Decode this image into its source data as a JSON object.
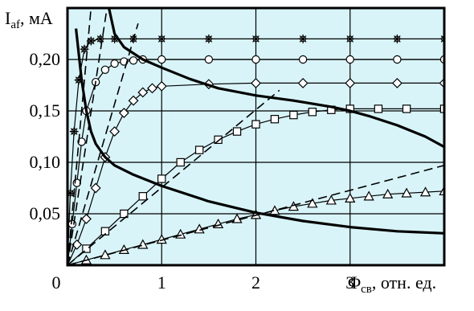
{
  "chart_data": {
    "type": "line",
    "title": "",
    "xlabel": {
      "main": "Φ",
      "sub": "св",
      "suffix": ", отн. ед."
    },
    "ylabel": {
      "main": "I",
      "sub": "af",
      "suffix": ", мА"
    },
    "xlim": [
      0,
      4
    ],
    "ylim": [
      0,
      0.25
    ],
    "x_ticks": [
      {
        "value": 1,
        "label": "1"
      },
      {
        "value": 2,
        "label": "2"
      },
      {
        "value": 3,
        "label": "3"
      }
    ],
    "y_ticks": [
      {
        "value": 0.05,
        "label": "0,05"
      },
      {
        "value": 0.1,
        "label": "0,10"
      },
      {
        "value": 0.15,
        "label": "0,15"
      },
      {
        "value": 0.2,
        "label": "0,20"
      }
    ],
    "origin_label": "0",
    "grid": true,
    "plot_background": "#d8f4f8",
    "colors": {
      "ink": "#000000"
    },
    "series": [
      {
        "marker": "asterisk",
        "style": "solid",
        "x": [
          0,
          0.03,
          0.07,
          0.12,
          0.18,
          0.25,
          0.35,
          0.5,
          0.7,
          1.0,
          1.5,
          2.0,
          2.5,
          3.0,
          3.5,
          4.0
        ],
        "y": [
          0,
          0.07,
          0.13,
          0.18,
          0.21,
          0.218,
          0.22,
          0.22,
          0.22,
          0.22,
          0.22,
          0.22,
          0.22,
          0.22,
          0.22,
          0.22
        ]
      },
      {
        "marker": "circle",
        "style": "solid",
        "x": [
          0,
          0.05,
          0.1,
          0.15,
          0.2,
          0.3,
          0.4,
          0.5,
          0.6,
          0.7,
          0.8,
          1.0,
          1.5,
          2.0,
          2.5,
          3.0,
          3.5,
          4.0
        ],
        "y": [
          0,
          0.04,
          0.08,
          0.12,
          0.15,
          0.178,
          0.19,
          0.196,
          0.198,
          0.199,
          0.2,
          0.2,
          0.2,
          0.2,
          0.2,
          0.2,
          0.2,
          0.2
        ]
      },
      {
        "marker": "diamond",
        "style": "solid",
        "x": [
          0,
          0.1,
          0.2,
          0.3,
          0.4,
          0.5,
          0.6,
          0.7,
          0.8,
          0.9,
          1.0,
          1.5,
          2.0,
          2.5,
          3.0,
          3.5,
          4.0
        ],
        "y": [
          0,
          0.02,
          0.045,
          0.075,
          0.105,
          0.13,
          0.148,
          0.16,
          0.168,
          0.172,
          0.174,
          0.176,
          0.177,
          0.177,
          0.177,
          0.177,
          0.177
        ]
      },
      {
        "marker": "square",
        "style": "solid",
        "x": [
          0,
          0.2,
          0.4,
          0.6,
          0.8,
          1.0,
          1.2,
          1.4,
          1.6,
          1.8,
          2.0,
          2.2,
          2.4,
          2.6,
          2.8,
          3.0,
          3.3,
          3.6,
          4.0
        ],
        "y": [
          0,
          0.016,
          0.033,
          0.05,
          0.067,
          0.084,
          0.1,
          0.112,
          0.122,
          0.13,
          0.137,
          0.142,
          0.146,
          0.149,
          0.151,
          0.152,
          0.152,
          0.152,
          0.152
        ]
      },
      {
        "marker": "triangle",
        "style": "solid",
        "x": [
          0,
          0.2,
          0.4,
          0.6,
          0.8,
          1.0,
          1.2,
          1.4,
          1.6,
          1.8,
          2.0,
          2.2,
          2.4,
          2.6,
          2.8,
          3.0,
          3.2,
          3.4,
          3.6,
          3.8,
          4.0
        ],
        "y": [
          0,
          0.005,
          0.01,
          0.015,
          0.02,
          0.025,
          0.03,
          0.035,
          0.04,
          0.045,
          0.049,
          0.053,
          0.057,
          0.06,
          0.063,
          0.065,
          0.067,
          0.069,
          0.07,
          0.071,
          0.072
        ]
      },
      {
        "marker": "none",
        "style": "dashed",
        "x": [
          0,
          0.25
        ],
        "y": [
          0,
          0.25
        ]
      },
      {
        "marker": "none",
        "style": "dashed",
        "x": [
          0,
          0.42
        ],
        "y": [
          0,
          0.25
        ]
      },
      {
        "marker": "none",
        "style": "dashed",
        "x": [
          0,
          0.75
        ],
        "y": [
          0,
          0.235
        ]
      },
      {
        "marker": "none",
        "style": "dashed",
        "x": [
          0,
          2.25
        ],
        "y": [
          0,
          0.17
        ]
      },
      {
        "marker": "none",
        "style": "dashed",
        "x": [
          0,
          4.0
        ],
        "y": [
          0,
          0.097
        ]
      },
      {
        "marker": "none",
        "style": "bold",
        "x": [
          0.44,
          0.5,
          0.6,
          0.8,
          1.0,
          1.3,
          1.6,
          2.0,
          2.4,
          2.8,
          3.0,
          3.2,
          3.5,
          3.8,
          4.0
        ],
        "y": [
          0.25,
          0.225,
          0.212,
          0.2,
          0.192,
          0.181,
          0.172,
          0.165,
          0.16,
          0.154,
          0.15,
          0.145,
          0.136,
          0.125,
          0.115
        ]
      },
      {
        "marker": "none",
        "style": "bold",
        "x": [
          0.09,
          0.12,
          0.15,
          0.2,
          0.25,
          0.3,
          0.4,
          0.5,
          0.7,
          1.0,
          1.5,
          2.0,
          2.5,
          3.0,
          3.5,
          4.0
        ],
        "y": [
          0.23,
          0.205,
          0.18,
          0.15,
          0.13,
          0.118,
          0.105,
          0.097,
          0.088,
          0.077,
          0.062,
          0.051,
          0.043,
          0.037,
          0.033,
          0.031
        ]
      }
    ]
  }
}
